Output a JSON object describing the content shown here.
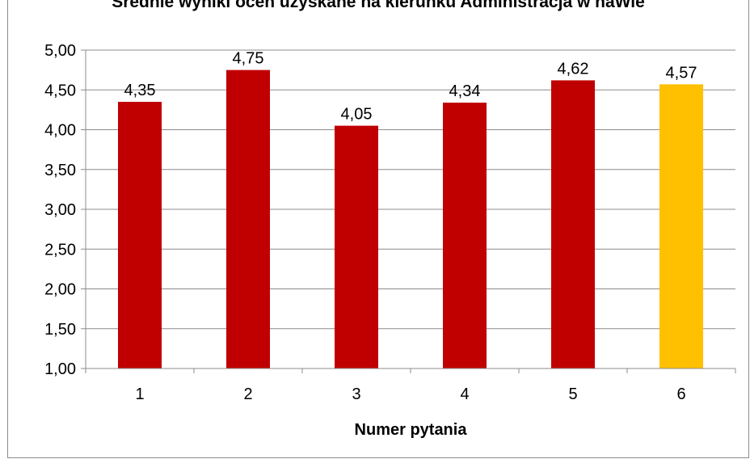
{
  "chart_data": {
    "type": "bar",
    "title": "Średnie wyniki ocen uzyskane na kierunku Administracja w naWie",
    "xlabel": "Numer pytania",
    "ylabel": "",
    "categories": [
      "1",
      "2",
      "3",
      "4",
      "5",
      "6"
    ],
    "values": [
      4.35,
      4.75,
      4.05,
      4.34,
      4.62,
      4.57
    ],
    "value_labels": [
      "4,35",
      "4,75",
      "4,05",
      "4,34",
      "4,62",
      "4,57"
    ],
    "bar_colors": [
      "#c00000",
      "#c00000",
      "#c00000",
      "#c00000",
      "#c00000",
      "#ffc000"
    ],
    "ylim": [
      1.0,
      5.0
    ],
    "yticks": [
      1.0,
      1.5,
      2.0,
      2.5,
      3.0,
      3.5,
      4.0,
      4.5,
      5.0
    ],
    "ytick_labels": [
      "1,00",
      "1,50",
      "2,00",
      "2,50",
      "3,00",
      "3,50",
      "4,00",
      "4,50",
      "5,00"
    ],
    "grid": true,
    "legend": false
  },
  "colors": {
    "grid": "#8c8c8c",
    "axis": "#8c8c8c",
    "primary_bar": "#c00000",
    "highlight_bar": "#ffc000"
  }
}
